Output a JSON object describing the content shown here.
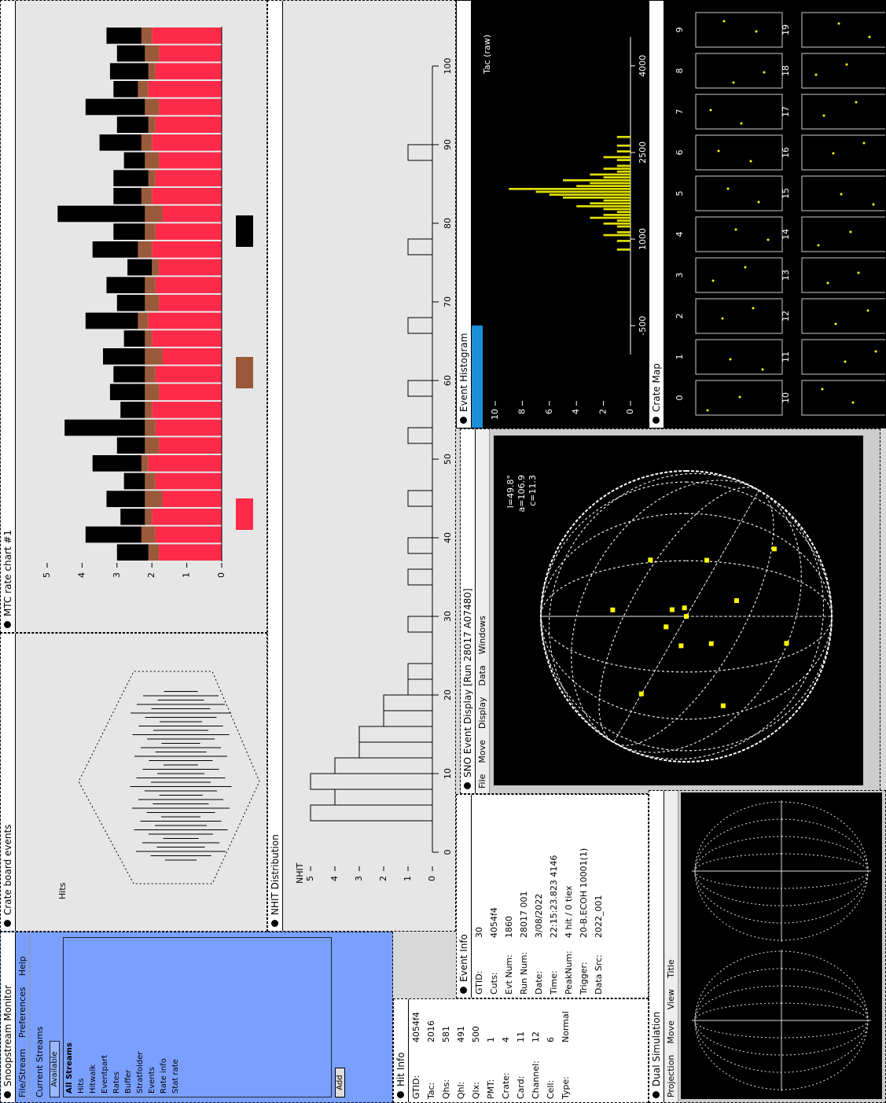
{
  "monitor": {
    "title": "Snoopstream Monitor",
    "menu": [
      "File/Stream",
      "Preferences",
      "Help"
    ],
    "section": "Current Streams",
    "tab": "Available",
    "list_header": "All Streams",
    "items": [
      "Hits",
      "Hitwalk",
      "Eventpart",
      "Rates",
      "Buffer",
      "Stratfolder",
      "Events",
      "Rate info",
      "Stat rate"
    ],
    "button": "Add"
  },
  "crate_events": {
    "title": "Crate board events",
    "label": "Hits"
  },
  "rate_chart": {
    "title": "MTC rate chart #1",
    "ylim": [
      0,
      5
    ],
    "yticks": [
      0,
      1,
      2,
      3,
      4,
      5
    ],
    "series": [
      {
        "color": "#ff2a4a",
        "values": [
          1.8,
          1.9,
          2.0,
          1.7,
          1.9,
          2.1,
          1.8,
          1.9,
          2.0,
          1.8,
          1.9,
          1.7,
          2.0,
          2.1,
          1.8,
          1.9,
          1.8,
          2.0,
          1.9,
          1.7,
          2.0,
          1.9,
          1.8,
          2.0,
          1.9,
          1.8,
          2.1,
          1.9,
          1.8,
          2.0
        ]
      },
      {
        "color": "#9a5a3a",
        "values": [
          0.3,
          0.4,
          0.2,
          0.5,
          0.3,
          0.2,
          0.4,
          0.3,
          0.2,
          0.4,
          0.3,
          0.5,
          0.2,
          0.3,
          0.4,
          0.3,
          0.2,
          0.4,
          0.3,
          0.5,
          0.3,
          0.2,
          0.4,
          0.3,
          0.2,
          0.4,
          0.3,
          0.2,
          0.4,
          0.3
        ]
      },
      {
        "color": "#000000",
        "values": [
          0.9,
          1.6,
          0.7,
          1.1,
          0.6,
          1.4,
          0.8,
          2.3,
          0.7,
          1.0,
          0.9,
          1.2,
          0.6,
          1.5,
          0.8,
          1.1,
          0.7,
          1.3,
          0.9,
          2.5,
          0.8,
          1.0,
          0.6,
          1.2,
          0.9,
          1.7,
          0.7,
          1.1,
          0.8,
          1.0
        ]
      }
    ]
  },
  "nhit": {
    "title": "NHIT Distribution",
    "xlabel": "NHIT",
    "xlim": [
      0,
      100
    ],
    "xticks": [
      0,
      10,
      20,
      30,
      40,
      50,
      60,
      70,
      80,
      90,
      100
    ],
    "ylim": [
      0,
      5
    ],
    "yticks": [
      0,
      1,
      2,
      3,
      4,
      5
    ],
    "bins": [
      0,
      2,
      4,
      6,
      8,
      10,
      12,
      14,
      16,
      18,
      20,
      22,
      24,
      26,
      28,
      30,
      32,
      34,
      36,
      38,
      40,
      42,
      44,
      46,
      48,
      50,
      52,
      54,
      56,
      58,
      60,
      62,
      64,
      66,
      68,
      70,
      72,
      74,
      76,
      78,
      80,
      82,
      84,
      86,
      88,
      90,
      92,
      94,
      96,
      98,
      100
    ],
    "counts": [
      0,
      0,
      5,
      4,
      5,
      4,
      3,
      3,
      2,
      2,
      1,
      1,
      0,
      0,
      1,
      0,
      0,
      1,
      0,
      1,
      0,
      0,
      1,
      0,
      0,
      0,
      1,
      0,
      0,
      1,
      0,
      0,
      0,
      1,
      0,
      0,
      0,
      0,
      1,
      0,
      0,
      0,
      0,
      0,
      1,
      0,
      0,
      0,
      0,
      0
    ]
  },
  "hit_info": {
    "title": "Hit Info",
    "rows": [
      [
        "GTID:",
        "4054f4"
      ],
      [
        "Tac:",
        "2016"
      ],
      [
        "Qhs:",
        "581"
      ],
      [
        "Qhl:",
        "491"
      ],
      [
        "Qlx:",
        "500"
      ],
      [
        "PMT:",
        "1"
      ],
      [
        "Crate:",
        "4"
      ],
      [
        "Card:",
        "11"
      ],
      [
        "Channel:",
        "12"
      ],
      [
        "Cell:",
        "6"
      ],
      [
        "Type:",
        "Normal"
      ]
    ]
  },
  "event_info": {
    "title": "Event Info",
    "rows": [
      [
        "GTID:",
        "30"
      ],
      [
        "Cuts:",
        "4054f4"
      ],
      [
        "Evt Num:",
        "1860"
      ],
      [
        "Run Num:",
        "28017 001"
      ],
      [
        "Date:",
        "3/08/2022"
      ],
      [
        "Time:",
        "22:15:23.823 4146"
      ],
      [
        "PeakNum:",
        "4 hit / 0 tiex"
      ],
      [
        "Trigger:",
        "20-B,ECOH 10001(1)"
      ],
      [
        "Data Src:",
        "2022_001"
      ]
    ]
  },
  "display": {
    "title": "SNO Event Display [Run 28017 A07480]",
    "menu": [
      "File",
      "Move",
      "Display",
      "Data",
      "Windows"
    ],
    "angles": [
      "l=49.8°",
      "a=106.9",
      "c=11.3"
    ]
  },
  "histogram": {
    "title": "Event Histogram",
    "label": "Tac (raw)",
    "xlim": [
      -1000,
      4500
    ],
    "xticks": [
      -500,
      1000,
      2500,
      4000
    ],
    "ylim": [
      0,
      10
    ],
    "yticks": [
      0,
      2,
      4,
      6,
      8,
      10
    ],
    "bins": [
      800,
      850,
      900,
      950,
      1000,
      1050,
      1100,
      1150,
      1200,
      1250,
      1300,
      1350,
      1400,
      1450,
      1500,
      1550,
      1600,
      1650,
      1700,
      1750,
      1800,
      1850,
      1900,
      1950,
      2000,
      2050,
      2100,
      2150,
      2200,
      2250,
      2300,
      2350,
      2400,
      2450,
      2500,
      2550,
      2600,
      2650,
      2700,
      2750,
      2800
    ],
    "counts": [
      1,
      0,
      0,
      1,
      0,
      2,
      1,
      0,
      1,
      2,
      1,
      3,
      2,
      1,
      2,
      4,
      3,
      2,
      5,
      6,
      7,
      9,
      4,
      3,
      5,
      2,
      3,
      1,
      2,
      1,
      0,
      1,
      2,
      0,
      1,
      0,
      1,
      0,
      0,
      1
    ]
  },
  "crate_map": {
    "title": "Crate Map",
    "crates": [
      "0",
      "1",
      "2",
      "3",
      "4",
      "5",
      "6",
      "7",
      "8",
      "9",
      "10",
      "11",
      "12",
      "13",
      "14",
      "15",
      "16",
      "17",
      "18",
      "19"
    ]
  },
  "projection": {
    "title": "Dual Simulation",
    "menu": [
      "Projection",
      "Move",
      "View",
      "Title"
    ]
  }
}
